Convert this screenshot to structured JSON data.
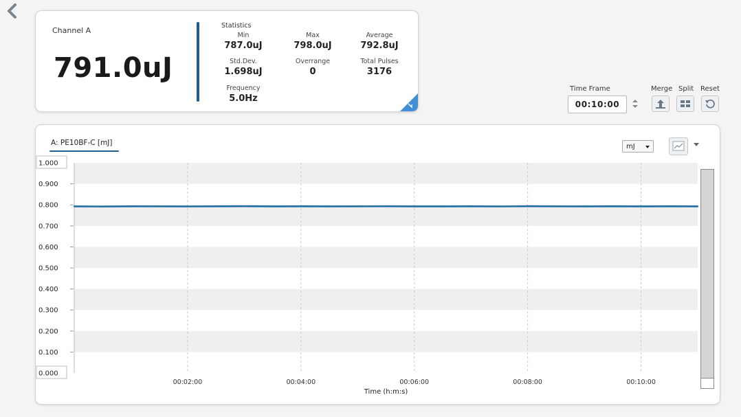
{
  "nav": {
    "back_icon": "chevron-left-icon"
  },
  "summary": {
    "channel_name": "Channel A",
    "reading": "791.0uJ",
    "statistics_title": "Statistics",
    "stats": [
      {
        "label": "Min",
        "value": "787.0uJ"
      },
      {
        "label": "Max",
        "value": "798.0uJ"
      },
      {
        "label": "Average",
        "value": "792.8uJ"
      },
      {
        "label": "Std.Dev.",
        "value": "1.698uJ"
      },
      {
        "label": "Overrange",
        "value": "0"
      },
      {
        "label": "Total Pulses",
        "value": "3176"
      },
      {
        "label": "Frequency",
        "value": "5.0Hz"
      }
    ],
    "corner_icon": "collapse-arrow-icon"
  },
  "controls": {
    "time_frame_label": "Time Frame",
    "time_frame_value": "00:10:00",
    "merge_label": "Merge",
    "split_label": "Split",
    "reset_label": "Reset"
  },
  "chart": {
    "unit_select": "mJ",
    "chart_type_icon": "line-chart-icon"
  },
  "colors": {
    "accent": "#1d5f8e",
    "line": "#1f6ea3",
    "band": "#efefef"
  },
  "chart_data": {
    "type": "line",
    "title": "A: PE10BF-C [mJ]",
    "xlabel": "Time (h:m:s)",
    "ylabel": "",
    "ylim": [
      0,
      1
    ],
    "xlim_seconds": [
      0,
      660
    ],
    "y_ticks": [
      "0.000",
      "0.100",
      "0.200",
      "0.300",
      "0.400",
      "0.500",
      "0.600",
      "0.700",
      "0.800",
      "0.900",
      "1.000"
    ],
    "x_ticks": [
      {
        "label": "00:02:00",
        "seconds": 120
      },
      {
        "label": "00:04:00",
        "seconds": 240
      },
      {
        "label": "00:06:00",
        "seconds": 360
      },
      {
        "label": "00:08:00",
        "seconds": 480
      },
      {
        "label": "00:10:00",
        "seconds": 600
      }
    ],
    "grid": true,
    "series": [
      {
        "name": "A: PE10BF-C [mJ]",
        "seconds": [
          0,
          30,
          60,
          90,
          120,
          150,
          180,
          210,
          240,
          270,
          300,
          330,
          360,
          390,
          420,
          450,
          480,
          510,
          540,
          570,
          600,
          630,
          660
        ],
        "values": [
          0.7928,
          0.7921,
          0.7932,
          0.7929,
          0.7925,
          0.7931,
          0.7936,
          0.7928,
          0.793,
          0.7927,
          0.7929,
          0.7933,
          0.7926,
          0.7928,
          0.793,
          0.7925,
          0.7934,
          0.7929,
          0.7927,
          0.7931,
          0.7928,
          0.793,
          0.7926
        ]
      }
    ]
  }
}
